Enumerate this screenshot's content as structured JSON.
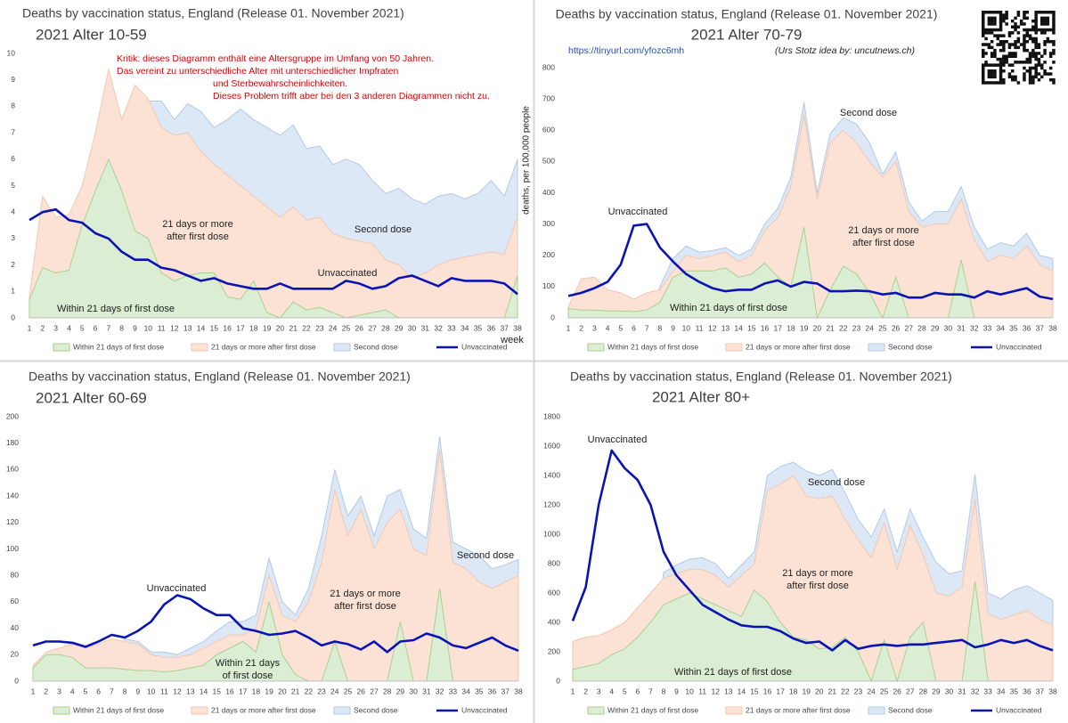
{
  "chart_data": [
    {
      "type": "area",
      "title": "Deaths by vaccination status, England (Release 01. November 2021)",
      "subtitle": "2021 Alter 10-59",
      "x_label": "week",
      "legend": "bottom",
      "grid": false,
      "categories": [
        "1",
        "2",
        "3",
        "4",
        "5",
        "6",
        "7",
        "8",
        "9",
        "10",
        "11",
        "12",
        "13",
        "14",
        "15",
        "16",
        "17",
        "18",
        "19",
        "20",
        "21",
        "22",
        "23",
        "24",
        "25",
        "26",
        "27",
        "28",
        "29",
        "30",
        "31",
        "32",
        "33",
        "34",
        "35",
        "36",
        "37",
        "38"
      ],
      "ylim": [
        0,
        10
      ],
      "yticks": [
        0,
        1,
        2,
        3,
        4,
        5,
        6,
        7,
        8,
        9,
        10
      ],
      "series": [
        {
          "name": "Second dose",
          "kind": "area",
          "color": "#dce8f6",
          "edge": "#b4c9e6",
          "values": [
            0,
            0,
            0,
            0,
            0,
            0,
            0,
            0,
            0,
            8.2,
            8.2,
            7.5,
            8.1,
            7.8,
            7.2,
            7.5,
            7.9,
            7.5,
            7.2,
            6.9,
            7.3,
            6.4,
            6.5,
            5.8,
            6.0,
            5.8,
            5.2,
            4.7,
            4.9,
            4.5,
            4.3,
            4.6,
            4.7,
            4.5,
            4.7,
            5.2,
            4.6,
            6.0
          ]
        },
        {
          "name": "21 days or more after first dose",
          "kind": "area",
          "color": "#fbe2d5",
          "edge": "#f4c7b0",
          "values": [
            0.8,
            4.6,
            3.8,
            3.9,
            5.0,
            7.0,
            9.4,
            7.5,
            8.8,
            8.3,
            7.2,
            6.9,
            7.0,
            6.3,
            5.8,
            5.4,
            5.0,
            4.6,
            4.2,
            3.8,
            4.2,
            3.7,
            3.8,
            3.2,
            3.0,
            2.9,
            2.8,
            2.2,
            2.0,
            1.5,
            1.7,
            2.0,
            2.2,
            2.3,
            2.4,
            2.5,
            2.4,
            3.8
          ]
        },
        {
          "name": "Within 21 days of first dose",
          "kind": "area",
          "color": "#dbedd2",
          "edge": "#a9d18e",
          "values": [
            0.7,
            1.9,
            1.7,
            1.8,
            3.5,
            4.8,
            6.0,
            4.8,
            3.3,
            3.0,
            1.7,
            1.4,
            1.6,
            1.7,
            1.7,
            0.8,
            0.7,
            1.4,
            0.2,
            0,
            0.6,
            0.3,
            0.4,
            0.2,
            0,
            0.1,
            0.2,
            0.3,
            0,
            0,
            0,
            0,
            0,
            0,
            0,
            0,
            0,
            1.6
          ]
        },
        {
          "name": "Unvaccinated",
          "kind": "line",
          "color": "#0a14b4",
          "values": [
            3.7,
            4.0,
            4.1,
            3.7,
            3.6,
            3.2,
            3.0,
            2.5,
            2.2,
            2.2,
            1.9,
            1.8,
            1.6,
            1.4,
            1.5,
            1.3,
            1.2,
            1.1,
            1.1,
            1.3,
            1.1,
            1.1,
            1.1,
            1.1,
            1.4,
            1.3,
            1.1,
            1.2,
            1.5,
            1.6,
            1.4,
            1.2,
            1.5,
            1.4,
            1.4,
            1.4,
            1.3,
            0.9
          ]
        }
      ],
      "annotations": [
        {
          "lines": [
            "Kritik: dieses Diagramm enthält eine Altersgruppe im Umfang von 50 Jahren.",
            "Das vereint zu unterschiedliche Alter mit unterschiedlicher Impfraten"
          ],
          "color": "#e00000"
        },
        {
          "lines": [
            "und Sterbewahrscheinlichkeiten.",
            "Dieses Problem trifft aber bei den 3 anderen Diagrammen nicht zu."
          ],
          "color": "#e00000"
        },
        {
          "lines": [
            "21 days or more",
            "after first dose"
          ]
        },
        {
          "lines": [
            "Second dose"
          ]
        },
        {
          "lines": [
            "Unvaccinated"
          ]
        },
        {
          "lines": [
            "Within 21 days of first dose"
          ]
        }
      ]
    },
    {
      "type": "area",
      "title": "Deaths by vaccination status, England (Release 01. November 2021)",
      "subtitle": "2021 Alter 70-79",
      "y_label": "deaths, per 100,000 people",
      "legend": "bottom",
      "grid": false,
      "categories": [
        "1",
        "2",
        "3",
        "4",
        "5",
        "6",
        "7",
        "8",
        "9",
        "10",
        "11",
        "12",
        "13",
        "14",
        "15",
        "16",
        "17",
        "18",
        "19",
        "20",
        "21",
        "22",
        "23",
        "24",
        "25",
        "26",
        "27",
        "28",
        "29",
        "30",
        "31",
        "32",
        "33",
        "34",
        "35",
        "36",
        "37",
        "38"
      ],
      "ylim": [
        0,
        800
      ],
      "yticks": [
        0,
        100,
        200,
        300,
        400,
        500,
        600,
        700,
        800
      ],
      "series": [
        {
          "name": "Second dose",
          "kind": "area",
          "color": "#dce8f6",
          "edge": "#b4c9e6",
          "values": [
            0,
            0,
            0,
            0,
            0,
            0,
            0,
            100,
            190,
            230,
            210,
            215,
            225,
            200,
            220,
            300,
            350,
            450,
            690,
            400,
            590,
            640,
            620,
            560,
            460,
            530,
            370,
            310,
            340,
            340,
            420,
            290,
            220,
            240,
            230,
            270,
            200,
            190
          ]
        },
        {
          "name": "21 days or more after first dose",
          "kind": "area",
          "color": "#fbe2d5",
          "edge": "#f4c7b0",
          "values": [
            35,
            125,
            130,
            90,
            80,
            60,
            80,
            90,
            150,
            200,
            190,
            200,
            210,
            180,
            200,
            280,
            320,
            420,
            650,
            380,
            560,
            600,
            560,
            500,
            450,
            500,
            340,
            290,
            300,
            300,
            380,
            250,
            180,
            200,
            190,
            230,
            170,
            150
          ]
        },
        {
          "name": "Within 21 days of first dose",
          "kind": "area",
          "color": "#dbedd2",
          "edge": "#a9d18e",
          "values": [
            30,
            25,
            25,
            22,
            22,
            20,
            25,
            50,
            130,
            150,
            150,
            150,
            160,
            130,
            140,
            175,
            130,
            100,
            290,
            0,
            90,
            165,
            140,
            80,
            0,
            130,
            0,
            0,
            0,
            0,
            185,
            0,
            0,
            0,
            0,
            0,
            0,
            0
          ]
        },
        {
          "name": "Unvaccinated",
          "kind": "line",
          "color": "#0a14b4",
          "values": [
            70,
            80,
            95,
            115,
            170,
            295,
            300,
            225,
            180,
            140,
            115,
            95,
            85,
            90,
            90,
            110,
            120,
            100,
            115,
            110,
            85,
            85,
            87,
            85,
            75,
            80,
            65,
            65,
            80,
            75,
            75,
            65,
            85,
            75,
            85,
            95,
            68,
            60
          ]
        }
      ],
      "annotations": [
        {
          "lines": [
            "https://tinyurl.com/yfozc6mh"
          ],
          "color": "#1f4fc2"
        },
        {
          "lines": [
            "(Urs Stotz idea by: uncutnews.ch)"
          ],
          "italic": true
        },
        {
          "lines": [
            "Unvaccinated"
          ]
        },
        {
          "lines": [
            "Second dose"
          ]
        },
        {
          "lines": [
            "21 days or more",
            "after first dose"
          ]
        },
        {
          "lines": [
            "Within 21 days of first dose"
          ]
        }
      ]
    },
    {
      "type": "area",
      "title": "Deaths by vaccination status, England (Release 01. November 2021)",
      "subtitle": "2021 Alter 60-69",
      "legend": "bottom",
      "grid": false,
      "categories": [
        "1",
        "2",
        "3",
        "4",
        "5",
        "6",
        "7",
        "8",
        "9",
        "10",
        "11",
        "12",
        "13",
        "14",
        "15",
        "16",
        "17",
        "18",
        "19",
        "20",
        "21",
        "22",
        "23",
        "24",
        "25",
        "26",
        "27",
        "28",
        "29",
        "30",
        "31",
        "32",
        "33",
        "34",
        "35",
        "36",
        "37",
        "38"
      ],
      "ylim": [
        0,
        200
      ],
      "yticks": [
        0,
        20,
        40,
        60,
        80,
        100,
        120,
        140,
        160,
        180,
        200
      ],
      "series": [
        {
          "name": "Second dose",
          "kind": "area",
          "color": "#dce8f6",
          "edge": "#b4c9e6",
          "values": [
            0,
            0,
            0,
            0,
            0,
            0,
            0,
            32,
            30,
            22,
            22,
            20,
            25,
            30,
            38,
            45,
            45,
            50,
            93,
            60,
            50,
            70,
            110,
            160,
            125,
            140,
            110,
            140,
            145,
            115,
            108,
            185,
            105,
            100,
            95,
            85,
            88,
            92
          ]
        },
        {
          "name": "21 days or more after first dose",
          "kind": "area",
          "color": "#fbe2d5",
          "edge": "#f4c7b0",
          "values": [
            12,
            22,
            25,
            28,
            25,
            28,
            32,
            30,
            28,
            20,
            18,
            18,
            20,
            25,
            30,
            35,
            35,
            40,
            80,
            50,
            45,
            60,
            90,
            145,
            110,
            130,
            100,
            120,
            130,
            100,
            95,
            175,
            90,
            85,
            75,
            70,
            75,
            80
          ]
        },
        {
          "name": "Within 21 days of first dose",
          "kind": "area",
          "color": "#dbedd2",
          "edge": "#a9d18e",
          "values": [
            10,
            20,
            20,
            18,
            10,
            10,
            10,
            9,
            8,
            8,
            7,
            8,
            10,
            12,
            20,
            25,
            30,
            22,
            60,
            20,
            5,
            0,
            0,
            30,
            0,
            0,
            0,
            0,
            45,
            0,
            0,
            70,
            0,
            0,
            0,
            0,
            0,
            0
          ]
        },
        {
          "name": "Unvaccinated",
          "kind": "line",
          "color": "#0a14b4",
          "values": [
            27,
            30,
            30,
            29,
            26,
            30,
            35,
            33,
            38,
            45,
            58,
            65,
            62,
            55,
            50,
            50,
            40,
            38,
            35,
            36,
            38,
            33,
            27,
            30,
            28,
            24,
            30,
            22,
            30,
            31,
            36,
            33,
            27,
            25,
            29,
            33,
            27,
            23
          ]
        }
      ],
      "annotations": [
        {
          "lines": [
            "Unvaccinated"
          ]
        },
        {
          "lines": [
            "21 days or more",
            "after first dose"
          ]
        },
        {
          "lines": [
            "Second dose"
          ]
        },
        {
          "lines": [
            "Within 21 days",
            "of first dose"
          ]
        }
      ]
    },
    {
      "type": "area",
      "title": "Deaths by vaccination status, England (Release 01. November 2021)",
      "subtitle": "2021 Alter 80+",
      "legend": "bottom",
      "grid": false,
      "categories": [
        "1",
        "2",
        "3",
        "4",
        "5",
        "6",
        "7",
        "8",
        "9",
        "10",
        "11",
        "12",
        "13",
        "14",
        "15",
        "16",
        "17",
        "18",
        "19",
        "20",
        "21",
        "22",
        "23",
        "24",
        "25",
        "26",
        "27",
        "28",
        "29",
        "30",
        "31",
        "32",
        "33",
        "34",
        "35",
        "36",
        "37",
        "38"
      ],
      "ylim": [
        0,
        1800
      ],
      "yticks": [
        0,
        200,
        400,
        600,
        800,
        1000,
        1200,
        1400,
        1600,
        1800
      ],
      "series": [
        {
          "name": "Second dose",
          "kind": "area",
          "color": "#dce8f6",
          "edge": "#b4c9e6",
          "values": [
            0,
            0,
            0,
            0,
            0,
            0,
            0,
            740,
            790,
            830,
            840,
            800,
            700,
            790,
            880,
            1400,
            1460,
            1490,
            1430,
            1400,
            1440,
            1280,
            1100,
            980,
            1170,
            880,
            1170,
            980,
            810,
            730,
            750,
            1410,
            600,
            560,
            620,
            650,
            600,
            550
          ]
        },
        {
          "name": "21 days or more after first dose",
          "kind": "area",
          "color": "#fbe2d5",
          "edge": "#f4c7b0",
          "values": [
            270,
            300,
            310,
            350,
            400,
            500,
            600,
            700,
            730,
            760,
            760,
            720,
            640,
            720,
            800,
            1300,
            1340,
            1400,
            1260,
            1240,
            1260,
            1100,
            960,
            840,
            1080,
            760,
            1060,
            860,
            600,
            580,
            640,
            1240,
            460,
            420,
            450,
            480,
            420,
            380
          ]
        },
        {
          "name": "Within 21 days of first dose",
          "kind": "area",
          "color": "#dbedd2",
          "edge": "#a9d18e",
          "values": [
            80,
            100,
            120,
            180,
            220,
            300,
            400,
            520,
            560,
            600,
            560,
            520,
            480,
            440,
            620,
            540,
            400,
            300,
            280,
            220,
            230,
            300,
            200,
            0,
            280,
            0,
            300,
            400,
            0,
            0,
            0,
            680,
            0,
            0,
            0,
            0,
            0,
            0
          ]
        },
        {
          "name": "Unvaccinated",
          "kind": "line",
          "color": "#0a14b4",
          "values": [
            410,
            640,
            1200,
            1570,
            1450,
            1370,
            1200,
            880,
            720,
            620,
            520,
            470,
            420,
            380,
            370,
            370,
            340,
            290,
            260,
            270,
            210,
            280,
            220,
            240,
            250,
            240,
            250,
            250,
            260,
            270,
            280,
            230,
            250,
            280,
            260,
            280,
            240,
            210
          ]
        }
      ],
      "annotations": [
        {
          "lines": [
            "Unvaccinated"
          ]
        },
        {
          "lines": [
            "Second dose"
          ]
        },
        {
          "lines": [
            "21 days or more",
            "after first dose"
          ]
        },
        {
          "lines": [
            "Within 21 days of first dose"
          ]
        }
      ]
    }
  ]
}
